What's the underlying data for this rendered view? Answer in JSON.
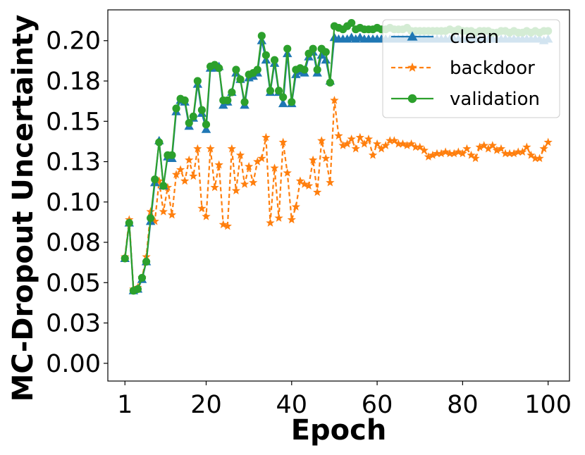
{
  "chart_data": {
    "type": "line",
    "xlabel": "Epoch",
    "ylabel": "MC-Dropout Uncertainty",
    "xlim": [
      -3,
      105
    ],
    "ylim": [
      -0.011,
      0.2191
    ],
    "xticks": [
      1,
      20,
      40,
      60,
      80,
      100
    ],
    "xtick_labels": [
      "1",
      "20",
      "40",
      "60",
      "80",
      "100"
    ],
    "yticks": [
      0.0,
      0.025,
      0.05,
      0.075,
      0.1,
      0.125,
      0.15,
      0.175,
      0.2
    ],
    "ytick_labels": [
      "0.00",
      "0.03",
      "0.05",
      "0.08",
      "0.10",
      "0.13",
      "0.15",
      "0.18",
      "0.20"
    ],
    "legend_position": "top-right",
    "x": [
      1,
      2,
      3,
      4,
      5,
      6,
      7,
      8,
      9,
      10,
      11,
      12,
      13,
      14,
      15,
      16,
      17,
      18,
      19,
      20,
      21,
      22,
      23,
      24,
      25,
      26,
      27,
      28,
      29,
      30,
      31,
      32,
      33,
      34,
      35,
      36,
      37,
      38,
      39,
      40,
      41,
      42,
      43,
      44,
      45,
      46,
      47,
      48,
      49,
      50,
      51,
      52,
      53,
      54,
      55,
      56,
      57,
      58,
      59,
      60,
      61,
      62,
      63,
      64,
      65,
      66,
      67,
      68,
      69,
      70,
      71,
      72,
      73,
      74,
      75,
      76,
      77,
      78,
      79,
      80,
      81,
      82,
      83,
      84,
      85,
      86,
      87,
      88,
      89,
      90,
      91,
      92,
      93,
      94,
      95,
      96,
      97,
      98,
      99,
      100
    ],
    "series": [
      {
        "name": "clean",
        "color": "#1f77b4",
        "dash": "solid",
        "marker": "triangle",
        "values": [
          0.065,
          0.087,
          0.045,
          0.046,
          0.052,
          0.063,
          0.088,
          0.112,
          0.138,
          0.11,
          0.128,
          0.127,
          0.156,
          0.163,
          0.162,
          0.147,
          0.152,
          0.173,
          0.155,
          0.145,
          0.183,
          0.183,
          0.184,
          0.16,
          0.162,
          0.168,
          0.18,
          0.176,
          0.16,
          0.177,
          0.178,
          0.18,
          0.2,
          0.188,
          0.168,
          0.186,
          0.168,
          0.161,
          0.192,
          0.161,
          0.179,
          0.181,
          0.18,
          0.19,
          0.193,
          0.18,
          0.191,
          0.188,
          0.175,
          0.202,
          0.201,
          0.201,
          0.201,
          0.202,
          0.201,
          0.202,
          0.201,
          0.201,
          0.201,
          0.201,
          0.201,
          0.201,
          0.201,
          0.201,
          0.201,
          0.201,
          0.201,
          0.201,
          0.201,
          0.201,
          0.201,
          0.201,
          0.201,
          0.201,
          0.201,
          0.201,
          0.201,
          0.201,
          0.201,
          0.201,
          0.201,
          0.201,
          0.201,
          0.201,
          0.201,
          0.201,
          0.201,
          0.201,
          0.201,
          0.201,
          0.201,
          0.201,
          0.201,
          0.201,
          0.201,
          0.201,
          0.201,
          0.201,
          0.2,
          0.201
        ]
      },
      {
        "name": "backdoor",
        "color": "#ff7f0e",
        "dash": "dashed",
        "marker": "star",
        "values": [
          0.066,
          0.089,
          0.046,
          0.047,
          0.053,
          0.066,
          0.094,
          0.088,
          0.113,
          0.094,
          0.109,
          0.092,
          0.117,
          0.12,
          0.113,
          0.126,
          0.116,
          0.133,
          0.096,
          0.091,
          0.133,
          0.109,
          0.123,
          0.086,
          0.085,
          0.133,
          0.107,
          0.129,
          0.111,
          0.122,
          0.112,
          0.125,
          0.127,
          0.14,
          0.087,
          0.121,
          0.09,
          0.137,
          0.118,
          0.089,
          0.097,
          0.113,
          0.111,
          0.11,
          0.126,
          0.106,
          0.138,
          0.127,
          0.112,
          0.163,
          0.141,
          0.135,
          0.136,
          0.139,
          0.133,
          0.14,
          0.136,
          0.139,
          0.129,
          0.136,
          0.133,
          0.135,
          0.138,
          0.138,
          0.136,
          0.136,
          0.135,
          0.136,
          0.134,
          0.134,
          0.132,
          0.128,
          0.129,
          0.13,
          0.13,
          0.131,
          0.13,
          0.13,
          0.131,
          0.13,
          0.133,
          0.129,
          0.127,
          0.134,
          0.135,
          0.133,
          0.135,
          0.132,
          0.133,
          0.13,
          0.13,
          0.13,
          0.131,
          0.131,
          0.134,
          0.129,
          0.127,
          0.127,
          0.133,
          0.137
        ]
      },
      {
        "name": "validation",
        "color": "#2ca02c",
        "dash": "solid",
        "marker": "circle",
        "values": [
          0.065,
          0.087,
          0.045,
          0.046,
          0.053,
          0.063,
          0.09,
          0.114,
          0.137,
          0.11,
          0.129,
          0.129,
          0.158,
          0.164,
          0.163,
          0.149,
          0.153,
          0.175,
          0.157,
          0.148,
          0.184,
          0.185,
          0.183,
          0.163,
          0.163,
          0.168,
          0.182,
          0.176,
          0.162,
          0.179,
          0.18,
          0.182,
          0.203,
          0.191,
          0.169,
          0.188,
          0.169,
          0.165,
          0.195,
          0.162,
          0.182,
          0.183,
          0.182,
          0.192,
          0.195,
          0.182,
          0.195,
          0.193,
          0.174,
          0.209,
          0.208,
          0.207,
          0.209,
          0.211,
          0.207,
          0.208,
          0.207,
          0.207,
          0.207,
          0.208,
          0.207,
          0.207,
          0.208,
          0.207,
          0.207,
          0.207,
          0.208,
          0.206,
          0.206,
          0.206,
          0.206,
          0.206,
          0.206,
          0.206,
          0.206,
          0.206,
          0.207,
          0.206,
          0.207,
          0.206,
          0.206,
          0.206,
          0.205,
          0.206,
          0.206,
          0.206,
          0.205,
          0.205,
          0.206,
          0.206,
          0.205,
          0.206,
          0.205,
          0.205,
          0.206,
          0.205,
          0.206,
          0.205,
          0.206,
          0.206
        ]
      }
    ]
  }
}
